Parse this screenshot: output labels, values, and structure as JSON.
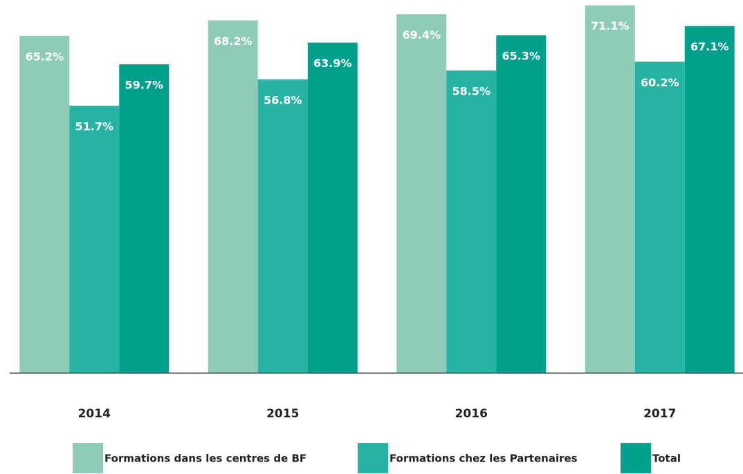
{
  "chart_data": {
    "type": "bar",
    "categories": [
      "2014",
      "2015",
      "2016",
      "2017"
    ],
    "series": [
      {
        "name": "Formations dans les centres de BF",
        "color": "#8ecbb9",
        "values": [
          65.2,
          68.2,
          69.4,
          71.1
        ],
        "value_labels": [
          "65.2%",
          "68.2%",
          "69.4%",
          "71.1%"
        ]
      },
      {
        "name": "Formations chez les Partenaires",
        "color": "#26b3a3",
        "values": [
          51.7,
          56.8,
          58.5,
          60.2
        ],
        "value_labels": [
          "51.7%",
          "56.8%",
          "58.5%",
          "60.2%"
        ]
      },
      {
        "name": "Total",
        "color": "#00a08c",
        "values": [
          59.7,
          63.9,
          65.3,
          67.1
        ],
        "value_labels": [
          "59.7%",
          "63.9%",
          "65.3%",
          "67.1%"
        ]
      }
    ],
    "ylim": [
      0,
      72
    ]
  }
}
